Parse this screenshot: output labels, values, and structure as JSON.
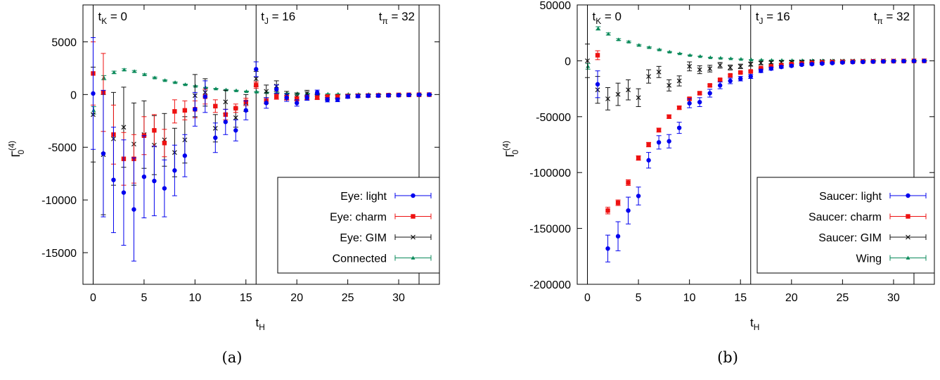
{
  "captions": [
    "(a)",
    "(b)"
  ],
  "colors": {
    "light": "#0000ee",
    "charm": "#ee1111",
    "gim": "#111111",
    "green": "#0a8a5a"
  },
  "chart_data": [
    {
      "type": "scatter",
      "panel": "(a)",
      "xlabel": "t",
      "xlabel_sub": "H",
      "ylabel": "Γ",
      "ylabel_sub": "0",
      "ylabel_sup": "(4)",
      "xlim": [
        -1,
        34
      ],
      "ylim": [
        -18000,
        8500
      ],
      "xticks": [
        0,
        5,
        10,
        15,
        20,
        25,
        30
      ],
      "yticks": [
        5000,
        0,
        -5000,
        -10000,
        -15000
      ],
      "ytick_labels": [
        "5000",
        "0",
        "-5000",
        "-10000",
        "-15000"
      ],
      "legend_position": "bottom-right",
      "vlines": [
        {
          "x": 0,
          "label": "t",
          "sub": "K",
          "suffix": " = 0",
          "align": "left"
        },
        {
          "x": 16,
          "label": "t",
          "sub": "J",
          "suffix": " = 16",
          "align": "left"
        },
        {
          "x": 32,
          "label": "t",
          "sub": "π",
          "suffix": " = 32",
          "align": "right"
        }
      ],
      "series": [
        {
          "name": "Connected",
          "color": "#0a8a5a",
          "marker": "triangle",
          "x": [
            0,
            1,
            2,
            3,
            4,
            5,
            6,
            7,
            8,
            9,
            10,
            11,
            12,
            13,
            14,
            15,
            16,
            17,
            18,
            19,
            20,
            21,
            22,
            23,
            24,
            25,
            26,
            27,
            28,
            29,
            30,
            31,
            32,
            33
          ],
          "y": [
            -1500,
            1600,
            2100,
            2350,
            2200,
            1900,
            1600,
            1350,
            1150,
            950,
            800,
            650,
            550,
            450,
            380,
            300,
            250,
            200,
            150,
            120,
            100,
            80,
            60,
            50,
            40,
            30,
            25,
            20,
            15,
            10,
            8,
            5,
            3,
            2
          ],
          "err": [
            350,
            200,
            120,
            90,
            80,
            70,
            60,
            50,
            50,
            40,
            40,
            30,
            30,
            30,
            30,
            30,
            30,
            20,
            20,
            20,
            20,
            20,
            20,
            20,
            10,
            10,
            10,
            10,
            10,
            10,
            10,
            10,
            10,
            10
          ]
        },
        {
          "name": "Eye: GIM",
          "color": "#111111",
          "marker": "cross",
          "x": [
            0,
            1,
            2,
            3,
            4,
            5,
            6,
            7,
            8,
            9,
            10,
            11,
            12,
            13,
            14,
            15,
            16,
            17,
            18,
            19,
            20,
            21,
            22,
            23,
            24,
            25,
            26,
            27,
            28,
            29,
            30,
            31,
            32,
            33
          ],
          "y": [
            -1900,
            -5700,
            -4200,
            -3100,
            -4700,
            -3800,
            -4800,
            -4300,
            -5500,
            -4300,
            -100,
            200,
            -3200,
            -700,
            -2200,
            -800,
            1500,
            300,
            800,
            -100,
            -200,
            100,
            -200,
            -300,
            -200,
            -150,
            -100,
            -100,
            -80,
            -60,
            -40,
            -30,
            -20,
            -10
          ],
          "err": [
            4500,
            5700,
            4400,
            3800,
            3900,
            3200,
            2800,
            2500,
            2300,
            2200,
            2000,
            1300,
            1300,
            1100,
            900,
            800,
            700,
            600,
            500,
            400,
            350,
            300,
            260,
            230,
            200,
            180,
            150,
            130,
            110,
            100,
            90,
            80,
            70,
            60
          ]
        },
        {
          "name": "Eye: charm",
          "color": "#ee1111",
          "marker": "square",
          "x": [
            0,
            1,
            2,
            3,
            4,
            5,
            6,
            7,
            8,
            9,
            10,
            11,
            12,
            13,
            14,
            15,
            16,
            17,
            18,
            19,
            20,
            21,
            22,
            23,
            24,
            25,
            26,
            27,
            28,
            29,
            30,
            31,
            32,
            33
          ],
          "y": [
            2000,
            200,
            -3800,
            -6100,
            -6100,
            -3900,
            -3400,
            -4600,
            -1600,
            -1500,
            -1400,
            -200,
            -1100,
            -1900,
            -1300,
            -700,
            900,
            -600,
            -200,
            -300,
            -400,
            -300,
            -300,
            -200,
            -200,
            -150,
            -120,
            -100,
            -80,
            -60,
            -40,
            -30,
            -20,
            -10
          ],
          "err": [
            3000,
            3700,
            2800,
            2500,
            2300,
            1800,
            1500,
            1300,
            1100,
            900,
            800,
            700,
            600,
            500,
            400,
            350,
            300,
            280,
            250,
            220,
            200,
            180,
            160,
            140,
            120,
            100,
            90,
            80,
            70,
            60,
            50,
            40,
            30,
            20
          ]
        },
        {
          "name": "Eye: light",
          "color": "#0000ee",
          "marker": "circle",
          "x": [
            0,
            1,
            2,
            3,
            4,
            5,
            6,
            7,
            8,
            9,
            10,
            11,
            12,
            13,
            14,
            15,
            16,
            17,
            18,
            19,
            20,
            21,
            22,
            23,
            24,
            25,
            26,
            27,
            28,
            29,
            30,
            31,
            32,
            33
          ],
          "y": [
            100,
            -5600,
            -8100,
            -9300,
            -10900,
            -7800,
            -8200,
            -8900,
            -7200,
            -5800,
            -1400,
            -200,
            -4100,
            -2600,
            -3400,
            -1500,
            2400,
            -800,
            500,
            -300,
            -800,
            -300,
            200,
            -500,
            -500,
            -200,
            -150,
            -120,
            -100,
            -80,
            -60,
            -40,
            -20,
            -10
          ],
          "err": [
            5300,
            6000,
            5000,
            5000,
            4900,
            3900,
            3300,
            2700,
            2400,
            2000,
            1600,
            1500,
            1400,
            1200,
            1000,
            900,
            700,
            500,
            400,
            350,
            300,
            250,
            220,
            200,
            180,
            160,
            140,
            120,
            100,
            90,
            80,
            70,
            60,
            50
          ]
        }
      ]
    },
    {
      "type": "scatter",
      "panel": "(b)",
      "xlabel": "t",
      "xlabel_sub": "H",
      "ylabel": "Γ",
      "ylabel_sub": "0",
      "ylabel_sup": "(4)",
      "xlim": [
        -1,
        34
      ],
      "ylim": [
        -200000,
        50000
      ],
      "xticks": [
        0,
        5,
        10,
        15,
        20,
        25,
        30
      ],
      "yticks": [
        50000,
        0,
        -50000,
        -100000,
        -150000,
        -200000
      ],
      "ytick_labels": [
        "50000",
        "0",
        "-50000",
        "-100000",
        "-150000",
        "-200000"
      ],
      "legend_position": "bottom-right",
      "vlines": [
        {
          "x": 0,
          "label": "t",
          "sub": "K",
          "suffix": " = 0",
          "align": "left"
        },
        {
          "x": 16,
          "label": "t",
          "sub": "J",
          "suffix": " = 16",
          "align": "left"
        },
        {
          "x": 32,
          "label": "t",
          "sub": "π",
          "suffix": " = 32",
          "align": "right"
        }
      ],
      "series": [
        {
          "name": "Wing",
          "color": "#0a8a5a",
          "marker": "triangle",
          "x": [
            0,
            1,
            2,
            3,
            4,
            5,
            6,
            7,
            8,
            9,
            10,
            11,
            12,
            13,
            14,
            15,
            16,
            17,
            18,
            19,
            20,
            21,
            22,
            23,
            24,
            25,
            26,
            27,
            28,
            29,
            30,
            31,
            32,
            33
          ],
          "y": [
            -5000,
            29000,
            24000,
            19000,
            17000,
            14000,
            12000,
            10000,
            8000,
            6500,
            5000,
            4000,
            3000,
            2500,
            2000,
            1500,
            1000,
            800,
            600,
            500,
            400,
            300,
            250,
            200,
            150,
            120,
            100,
            80,
            60,
            50,
            40,
            30,
            20,
            10
          ],
          "err": [
            2500,
            1500,
            1000,
            800,
            700,
            600,
            500,
            400,
            350,
            300,
            250,
            200,
            180,
            160,
            140,
            120,
            100,
            90,
            80,
            70,
            60,
            50,
            40,
            30,
            30,
            20,
            20,
            20,
            10,
            10,
            10,
            10,
            10,
            10
          ]
        },
        {
          "name": "Saucer: GIM",
          "color": "#111111",
          "marker": "cross",
          "x": [
            0,
            1,
            2,
            3,
            4,
            5,
            6,
            7,
            8,
            9,
            10,
            11,
            12,
            13,
            14,
            15,
            16,
            17,
            18,
            19,
            20,
            21,
            22,
            23,
            24,
            25,
            26,
            27,
            28,
            29,
            30,
            31,
            32,
            33
          ],
          "y": [
            0,
            -26000,
            -34000,
            -30000,
            -26000,
            -33000,
            -14000,
            -10000,
            -22000,
            -18000,
            -5000,
            -8000,
            -7000,
            -4000,
            -6000,
            -5000,
            -3000,
            -2000,
            -1500,
            -1200,
            -1000,
            -800,
            -600,
            -500,
            -400,
            -300,
            -250,
            -200,
            -150,
            -120,
            -100,
            -80,
            -60,
            -40
          ],
          "err": [
            15000,
            12000,
            10000,
            10000,
            9000,
            8000,
            6000,
            5000,
            5000,
            4500,
            4000,
            3500,
            3000,
            2500,
            2200,
            2000,
            1800,
            1500,
            1200,
            1000,
            900,
            800,
            700,
            600,
            500,
            450,
            400,
            350,
            300,
            250,
            200,
            150,
            120,
            100
          ]
        },
        {
          "name": "Saucer: charm",
          "color": "#ee1111",
          "marker": "square",
          "x": [
            0,
            1,
            2,
            3,
            4,
            5,
            6,
            7,
            8,
            9,
            10,
            11,
            12,
            13,
            14,
            15,
            16,
            17,
            18,
            19,
            20,
            21,
            22,
            23,
            24,
            25,
            26,
            27,
            28,
            29,
            30,
            31,
            32,
            33
          ],
          "y": [
            null,
            5000,
            -134000,
            -127000,
            -109000,
            -87000,
            -75000,
            -62000,
            -50000,
            -42000,
            -34000,
            -29000,
            -22000,
            -17000,
            -13000,
            -10500,
            -9500,
            -6500,
            -5000,
            -4000,
            -3000,
            -2500,
            -2000,
            -1500,
            -1200,
            -1000,
            -800,
            -600,
            -500,
            -400,
            -300,
            -200,
            -100,
            -50
          ],
          "err": [
            0,
            4000,
            3000,
            2500,
            2500,
            2000,
            2000,
            1800,
            1600,
            1400,
            1200,
            1100,
            1000,
            900,
            800,
            700,
            600,
            550,
            500,
            450,
            400,
            350,
            300,
            250,
            200,
            180,
            160,
            140,
            120,
            100,
            80,
            60,
            40,
            30
          ]
        },
        {
          "name": "Saucer: light",
          "color": "#0000ee",
          "marker": "circle",
          "x": [
            0,
            1,
            2,
            3,
            4,
            5,
            6,
            7,
            8,
            9,
            10,
            11,
            12,
            13,
            14,
            15,
            16,
            17,
            18,
            19,
            20,
            21,
            22,
            23,
            24,
            25,
            26,
            27,
            28,
            29,
            30,
            31,
            32,
            33
          ],
          "y": [
            null,
            -21000,
            -168000,
            -157000,
            -134000,
            -121000,
            -89000,
            -73000,
            -72000,
            -60000,
            -38000,
            -37000,
            -29000,
            -22000,
            -18000,
            -16000,
            -14000,
            -9000,
            -7000,
            -5500,
            -4500,
            -3500,
            -3000,
            -2500,
            -2000,
            -1500,
            -1200,
            -1000,
            -800,
            -600,
            -400,
            -300,
            -200,
            -100
          ],
          "err": [
            0,
            12000,
            12000,
            13000,
            12000,
            8000,
            7000,
            6000,
            6000,
            5000,
            4000,
            4000,
            3500,
            3000,
            2500,
            2000,
            1800,
            1500,
            1300,
            1100,
            900,
            800,
            700,
            600,
            500,
            450,
            400,
            350,
            300,
            250,
            200,
            150,
            120,
            100
          ]
        }
      ],
      "legend_order": [
        "Saucer: light",
        "Saucer: charm",
        "Saucer: GIM",
        "Wing"
      ]
    }
  ]
}
